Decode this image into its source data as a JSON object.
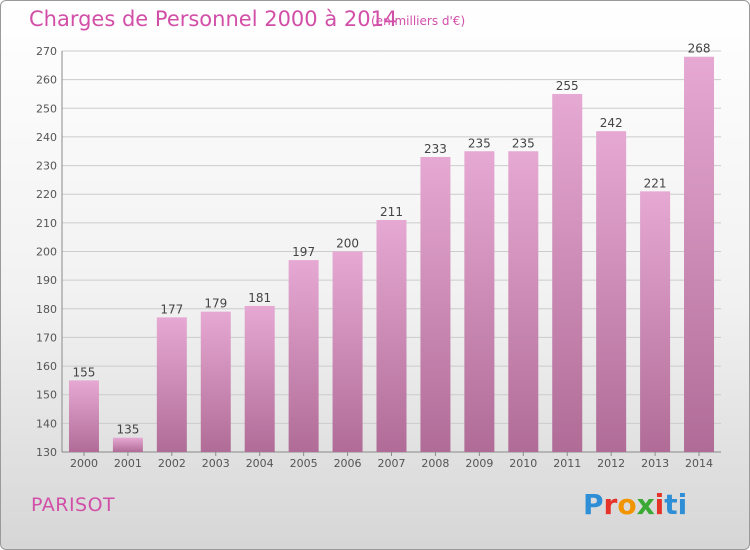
{
  "header": {
    "title": "Charges de Personnel 2000 à 2014",
    "subtitle": "(en milliers d'€)"
  },
  "footer": {
    "place": "PARISOT",
    "logo_text": "Proxiti"
  },
  "colors": {
    "title": "#d24fa8",
    "bar_top": "#e6a9d3",
    "bar_bottom": "#b06c97",
    "grid": "#cccccc"
  },
  "chart_data": {
    "type": "bar",
    "categories": [
      "2000",
      "2001",
      "2002",
      "2003",
      "2004",
      "2005",
      "2006",
      "2007",
      "2008",
      "2009",
      "2010",
      "2011",
      "2012",
      "2013",
      "2014"
    ],
    "values": [
      155,
      135,
      177,
      179,
      181,
      197,
      200,
      211,
      233,
      235,
      235,
      255,
      242,
      221,
      268
    ],
    "title": "Charges de Personnel 2000 à 2014",
    "subtitle": "(en milliers d'€)",
    "xlabel": "",
    "ylabel": "",
    "ylim": [
      130,
      270
    ],
    "yticks": [
      130,
      140,
      150,
      160,
      170,
      180,
      190,
      200,
      210,
      220,
      230,
      240,
      250,
      260,
      270
    ],
    "grid": true,
    "data_labels": true
  }
}
